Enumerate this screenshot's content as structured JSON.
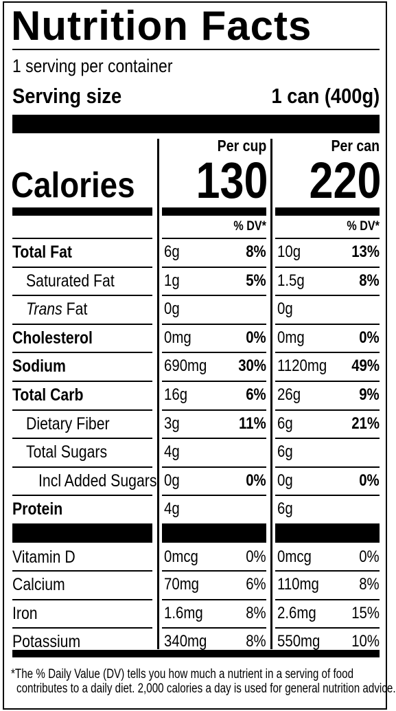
{
  "title": "Nutrition Facts",
  "servings": "1 serving per container",
  "serving_size_label": "Serving size",
  "serving_size": "1 can (400g)",
  "calories_label": "Calories",
  "columns": [
    {
      "header": "Per cup",
      "calories": "130",
      "dv_header": "% DV*"
    },
    {
      "header": "Per can",
      "calories": "220",
      "dv_header": "% DV*"
    }
  ],
  "nutrients": [
    {
      "name": "Total Fat",
      "bold": true,
      "indent": 0,
      "values": [
        [
          "6g",
          "8%"
        ],
        [
          "10g",
          "13%"
        ]
      ]
    },
    {
      "name": "Saturated Fat",
      "bold": false,
      "indent": 1,
      "values": [
        [
          "1g",
          "5%"
        ],
        [
          "1.5g",
          "8%"
        ]
      ]
    },
    {
      "name_italic": "Trans",
      "name": "Fat",
      "bold": false,
      "indent": 1,
      "values": [
        [
          "0g",
          null
        ],
        [
          "0g",
          null
        ]
      ]
    },
    {
      "name": "Cholesterol",
      "bold": true,
      "indent": 0,
      "values": [
        [
          "0mg",
          "0%"
        ],
        [
          "0mg",
          "0%"
        ]
      ]
    },
    {
      "name": "Sodium",
      "bold": true,
      "indent": 0,
      "values": [
        [
          "690mg",
          "30%"
        ],
        [
          "1120mg",
          "49%"
        ]
      ]
    },
    {
      "name": "Total Carb",
      "bold": true,
      "indent": 0,
      "values": [
        [
          "16g",
          "6%"
        ],
        [
          "26g",
          "9%"
        ]
      ]
    },
    {
      "name": "Dietary Fiber",
      "bold": false,
      "indent": 1,
      "values": [
        [
          "3g",
          "11%"
        ],
        [
          "6g",
          "21%"
        ]
      ]
    },
    {
      "name": "Total Sugars",
      "bold": false,
      "indent": 1,
      "values": [
        [
          "4g",
          null
        ],
        [
          "6g",
          null
        ]
      ]
    },
    {
      "name": "Incl Added Sugars",
      "bold": false,
      "indent": 2,
      "values": [
        [
          "0g",
          "0%"
        ],
        [
          "0g",
          "0%"
        ]
      ]
    },
    {
      "name": "Protein",
      "bold": true,
      "indent": 0,
      "values": [
        [
          "4g",
          null
        ],
        [
          "6g",
          null
        ]
      ]
    }
  ],
  "vitamins": [
    {
      "name": "Vitamin D",
      "values": [
        [
          "0mcg",
          "0%"
        ],
        [
          "0mcg",
          "0%"
        ]
      ]
    },
    {
      "name": "Calcium",
      "values": [
        [
          "70mg",
          "6%"
        ],
        [
          "110mg",
          "8%"
        ]
      ]
    },
    {
      "name": "Iron",
      "values": [
        [
          "1.6mg",
          "8%"
        ],
        [
          "2.6mg",
          "15%"
        ]
      ]
    },
    {
      "name": "Potassium",
      "values": [
        [
          "340mg",
          "8%"
        ],
        [
          "550mg",
          "10%"
        ]
      ]
    }
  ],
  "footnote": [
    "*The % Daily Value (DV) tells you how much a nutrient in a serving of food",
    "contributes to a daily diet. 2,000 calories a day is used for general nutrition advice."
  ]
}
